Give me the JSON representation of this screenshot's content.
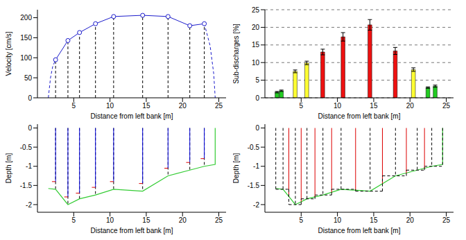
{
  "chart_data": [
    {
      "type": "line",
      "xlabel": "Distance from left bank [m]",
      "ylabel": "Velocity [cm/s]",
      "xlim": [
        0,
        26
      ],
      "ylim": [
        0,
        220
      ],
      "xticks": [
        5,
        10,
        15,
        20,
        25
      ],
      "yticks": [
        0,
        50,
        100,
        150,
        200
      ],
      "grid": false,
      "series": [
        {
          "x": [
            2.5,
            4.2,
            5.8,
            8,
            10.5,
            14.5,
            18,
            21,
            23
          ],
          "values": [
            95,
            143,
            163,
            185,
            203,
            206,
            203,
            180,
            185
          ],
          "color": "#1c1ccc",
          "marker": "circle",
          "line_style": "solid"
        },
        {
          "x": [
            1.5,
            1.8,
            2.1,
            2.5
          ],
          "values": [
            0,
            50,
            78,
            95
          ],
          "color": "#1c1ccc",
          "marker": "none",
          "line_style": "dashed"
        },
        {
          "x": [
            23,
            23.8,
            24.3,
            24.5
          ],
          "values": [
            185,
            130,
            60,
            0
          ],
          "color": "#1c1ccc",
          "marker": "none",
          "line_style": "dashed"
        }
      ],
      "verticals": {
        "x": [
          2.5,
          4.2,
          5.8,
          8,
          10.5,
          14.5,
          18,
          21,
          23
        ],
        "values": [
          95,
          143,
          163,
          185,
          203,
          206,
          203,
          180,
          185
        ],
        "color": "#000000",
        "line_style": "dashed"
      }
    },
    {
      "type": "bar",
      "xlabel": "Distance from left bank [m]",
      "ylabel": "Sub-discharges [%]",
      "xlim": [
        0,
        26
      ],
      "ylim": [
        0,
        25
      ],
      "xticks": [
        5,
        10,
        15,
        20,
        25
      ],
      "yticks": [
        0,
        5,
        10,
        15,
        20,
        25
      ],
      "grid": true,
      "x": [
        1.7,
        2.3,
        4.2,
        5.8,
        8,
        10.8,
        14.5,
        18,
        20.5,
        22.5,
        23.5
      ],
      "values": [
        1.6,
        2.0,
        7.5,
        9.9,
        13.0,
        17.3,
        20.7,
        13.3,
        8.0,
        2.9,
        3.3
      ],
      "errors": [
        0.2,
        0.2,
        0.4,
        0.5,
        0.8,
        1.2,
        1.5,
        1.0,
        0.5,
        0.2,
        0.3
      ],
      "colors": [
        "#22cc22",
        "#22cc22",
        "#ffff33",
        "#ffff33",
        "#ee1111",
        "#ee1111",
        "#ee1111",
        "#ee1111",
        "#ffff33",
        "#22cc22",
        "#22cc22"
      ]
    },
    {
      "type": "line",
      "xlabel": "Distance from left bank [m]",
      "ylabel": "Depth [m]",
      "xlim": [
        0,
        26
      ],
      "ylim": [
        -2.2,
        0.1
      ],
      "xticks": [
        5,
        10,
        15,
        20,
        25
      ],
      "yticks": [
        0,
        -0.5,
        -1,
        -1.5,
        -2
      ],
      "grid": false,
      "bed": {
        "x": [
          1.5,
          2.5,
          4.2,
          5.8,
          8,
          10.5,
          14.5,
          18,
          21,
          23,
          24.5,
          24.5
        ],
        "values": [
          -1.58,
          -1.6,
          -2.0,
          -1.85,
          -1.75,
          -1.6,
          -1.65,
          -1.25,
          -1.1,
          -1.0,
          -0.95,
          0
        ],
        "color": "#33cc33"
      },
      "stations": {
        "x": [
          2.5,
          4.2,
          5.8,
          8,
          10.5,
          14.5,
          18,
          21,
          23
        ],
        "depth": [
          -1.4,
          -1.8,
          -1.7,
          -1.55,
          -1.4,
          -1.45,
          -1.05,
          -0.9,
          -0.8
        ],
        "bed": [
          -1.6,
          -2.0,
          -1.85,
          -1.75,
          -1.6,
          -1.65,
          -1.25,
          -1.1,
          -1.0
        ],
        "color": "#0000dd",
        "mark_color": "#dd0000"
      }
    },
    {
      "type": "line",
      "xlabel": "Distance from left bank [m]",
      "ylabel": "Depth [m]",
      "xlim": [
        0,
        26
      ],
      "ylim": [
        -2.2,
        0.1
      ],
      "xticks": [
        5,
        10,
        15,
        20,
        25
      ],
      "yticks": [
        0,
        -0.5,
        -1,
        -1.5,
        -2
      ],
      "grid": false,
      "bed": {
        "x": [
          1.5,
          2.5,
          4.2,
          5.8,
          8,
          10.5,
          14.5,
          18,
          21,
          23,
          24.5,
          24.5
        ],
        "values": [
          -1.58,
          -1.6,
          -2.0,
          -1.85,
          -1.75,
          -1.6,
          -1.65,
          -1.25,
          -1.1,
          -1.0,
          -0.95,
          0
        ],
        "color": "#33cc33"
      },
      "stations": {
        "x": [
          2.5,
          4.2,
          5.8,
          8,
          10.5,
          14.5,
          18,
          21,
          23
        ],
        "bed": [
          -1.6,
          -2.0,
          -1.85,
          -1.75,
          -1.6,
          -1.65,
          -1.25,
          -1.1,
          -1.0
        ]
      },
      "boundaries": [
        1.5,
        3.3,
        5.0,
        6.9,
        9.2,
        12.5,
        16.2,
        19.5,
        22.0,
        24.5
      ],
      "dividers": {
        "x": [
          3.3,
          5.0,
          6.9,
          9.2,
          12.5,
          16.2,
          19.5,
          22.0
        ],
        "depth": [
          -1.8,
          -1.92,
          -1.8,
          -1.68,
          -1.62,
          -1.45,
          -1.18,
          -1.05
        ],
        "color": "#dd0000"
      }
    }
  ]
}
